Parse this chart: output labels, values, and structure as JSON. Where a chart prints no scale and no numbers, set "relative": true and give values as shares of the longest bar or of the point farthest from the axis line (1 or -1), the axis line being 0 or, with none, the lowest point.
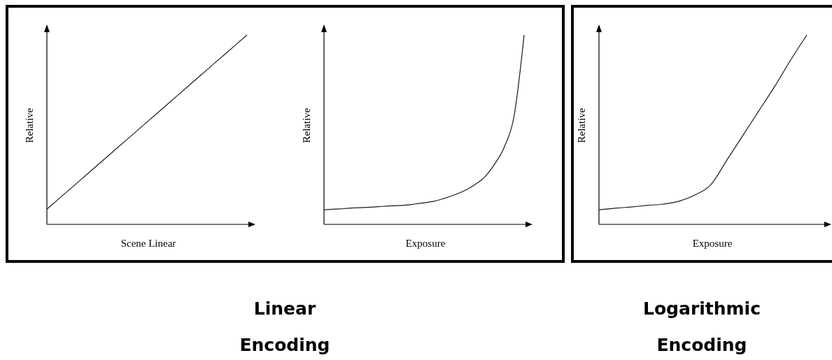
{
  "chart_data": [
    {
      "type": "line",
      "relative": true,
      "xlabel": "Scene Linear",
      "ylabel": "Relative",
      "categories": [
        null,
        null,
        null,
        null,
        null,
        null,
        null,
        null,
        null,
        null,
        null
      ],
      "line_style": "solid",
      "marker": "none",
      "annotations": [
        "Linear Encoding"
      ],
      "series": [
        {
          "color": "#1a1a1a",
          "values": [
            0.08,
            0.172,
            0.264,
            0.356,
            0.448,
            0.54,
            0.632,
            0.724,
            0.816,
            0.908,
            1
          ]
        }
      ]
    },
    {
      "type": "line",
      "relative": true,
      "xlabel": "Exposure",
      "ylabel": "Relative",
      "categories": [
        null,
        null,
        null,
        null,
        null,
        null,
        null,
        null,
        null,
        null,
        null,
        null,
        null,
        null,
        null,
        null,
        null,
        null,
        null,
        null,
        null
      ],
      "line_style": "solid",
      "marker": "none",
      "series": [
        {
          "color": "#1a1a1a",
          "values": [
            0.077,
            0.081,
            0.083,
            0.087,
            0.089,
            0.092,
            0.096,
            0.098,
            0.101,
            0.107,
            0.114,
            0.122,
            0.137,
            0.155,
            0.177,
            0.207,
            0.247,
            0.314,
            0.406,
            0.572,
            1
          ]
        }
      ]
    },
    {
      "type": "line",
      "relative": true,
      "xlabel": "Exposure",
      "ylabel": "Relative",
      "categories": [
        null,
        null,
        null,
        null,
        null,
        null,
        null,
        null,
        null,
        null,
        null,
        null,
        null,
        null,
        null
      ],
      "line_style": "solid",
      "marker": "none",
      "annotations": [
        "Logarithmic Encoding"
      ],
      "series": [
        {
          "color": "#1a1a1a",
          "values": [
            0.077,
            0.085,
            0.092,
            0.1,
            0.107,
            0.122,
            0.155,
            0.21,
            0.34,
            0.47,
            0.6,
            0.73,
            0.87,
            1,
            null
          ]
        }
      ]
    }
  ]
}
